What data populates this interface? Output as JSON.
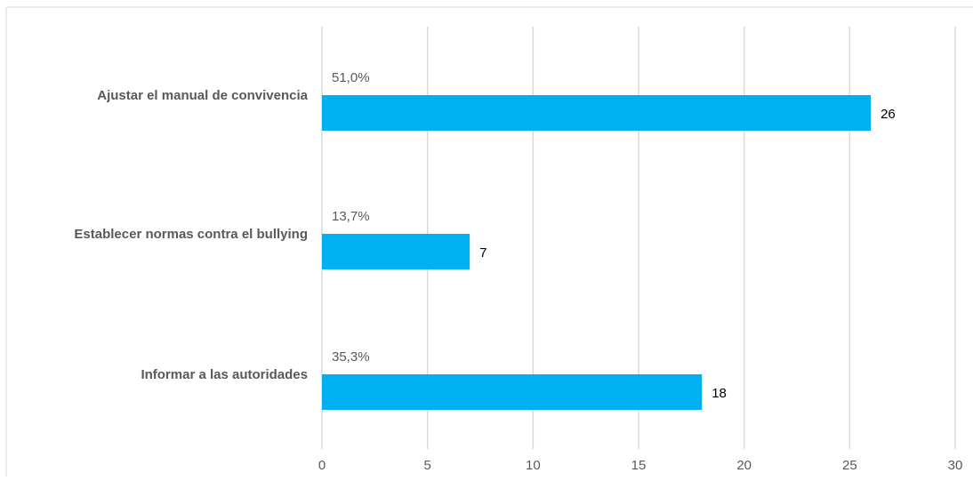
{
  "chart_data": {
    "type": "bar",
    "orientation": "horizontal",
    "categories": [
      "Ajustar el manual de convivencia",
      "Establecer normas contra el bullying",
      "Informar a las autoridades"
    ],
    "values": [
      26,
      7,
      18
    ],
    "percent_labels": [
      "51,0%",
      "13,7%",
      "35,3%"
    ],
    "xlim": [
      0,
      30
    ],
    "xticks": [
      "0",
      "5",
      "10",
      "15",
      "20",
      "25",
      "30"
    ],
    "grid": true,
    "legend": "none",
    "title": "",
    "xlabel": "",
    "ylabel": "",
    "bar_color": "#00B0F0",
    "grid_color": "#D9D9D9",
    "border_color": "#D9D9D9"
  }
}
